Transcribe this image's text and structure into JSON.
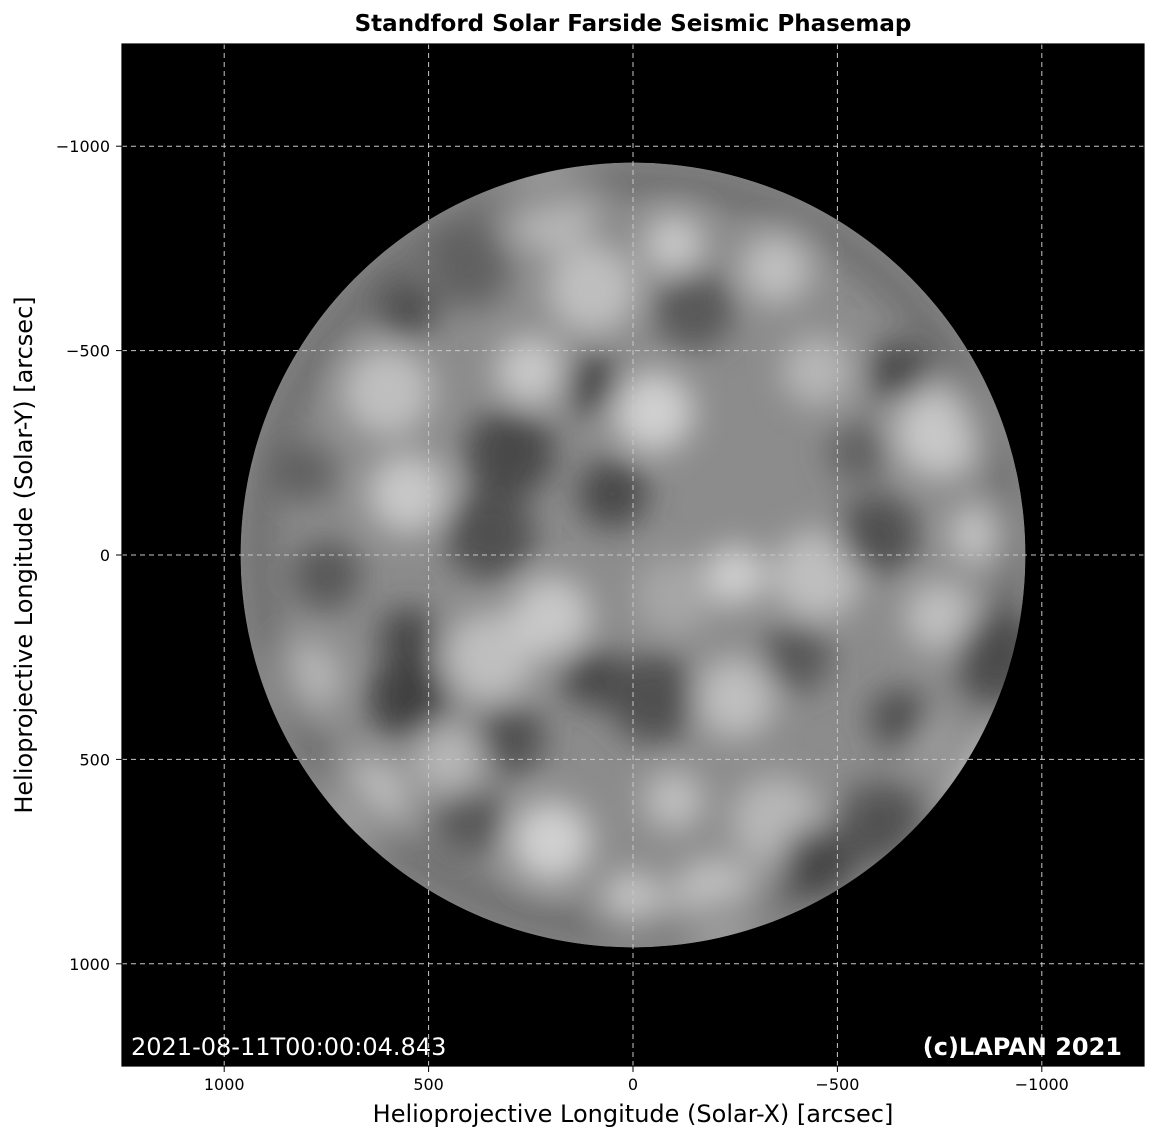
{
  "chart_data": {
    "type": "heatmap",
    "title": "Standford Solar Farside Seismic Phasemap",
    "xlabel": "Helioprojective Longitude (Solar-X) [arcsec]",
    "ylabel": "Helioprojective Longitude (Solar-Y) [arcsec]",
    "xlim": [
      1250,
      -1250
    ],
    "ylim": [
      -1250,
      1250
    ],
    "x_ticks": [
      1000,
      500,
      0,
      -500,
      -1000
    ],
    "x_tick_labels": [
      "1000",
      "500",
      "0",
      "−500",
      "−1000"
    ],
    "y_ticks": [
      -1000,
      -500,
      0,
      500,
      1000
    ],
    "y_tick_labels": [
      "−1000",
      "−500",
      "0",
      "500",
      "1000"
    ],
    "grid": true,
    "colormap": "gray",
    "background": "#000000",
    "disk": {
      "center": [
        0,
        0
      ],
      "radius": 960
    },
    "timestamp": "2021-08-11T00:00:04.843",
    "copyright": "(c)LAPAN 2021",
    "features": [
      {
        "x": -100,
        "y": -760,
        "v": 0.9
      },
      {
        "x": 200,
        "y": -850,
        "v": 0.8
      },
      {
        "x": 400,
        "y": -700,
        "v": 0.3
      },
      {
        "x": -350,
        "y": -700,
        "v": 0.85
      },
      {
        "x": 550,
        "y": -600,
        "v": 0.2
      },
      {
        "x": 600,
        "y": -400,
        "v": 0.85
      },
      {
        "x": -50,
        "y": -350,
        "v": 0.95
      },
      {
        "x": 250,
        "y": -450,
        "v": 0.9
      },
      {
        "x": 100,
        "y": -420,
        "v": 0.15
      },
      {
        "x": 300,
        "y": -250,
        "v": 0.15
      },
      {
        "x": -150,
        "y": -600,
        "v": 0.25
      },
      {
        "x": -450,
        "y": -450,
        "v": 0.8
      },
      {
        "x": -650,
        "y": -450,
        "v": 0.15
      },
      {
        "x": -750,
        "y": -300,
        "v": 0.9
      },
      {
        "x": 550,
        "y": -150,
        "v": 0.9
      },
      {
        "x": 750,
        "y": 50,
        "v": 0.25
      },
      {
        "x": 550,
        "y": 200,
        "v": 0.15
      },
      {
        "x": 350,
        "y": 250,
        "v": 0.85
      },
      {
        "x": 200,
        "y": 150,
        "v": 0.9
      },
      {
        "x": 50,
        "y": -150,
        "v": 0.15
      },
      {
        "x": -250,
        "y": 50,
        "v": 0.95
      },
      {
        "x": -450,
        "y": 50,
        "v": 0.85
      },
      {
        "x": -600,
        "y": -50,
        "v": 0.2
      },
      {
        "x": -750,
        "y": 150,
        "v": 0.85
      },
      {
        "x": -850,
        "y": -50,
        "v": 0.9
      },
      {
        "x": -900,
        "y": 250,
        "v": 0.2
      },
      {
        "x": 550,
        "y": 350,
        "v": 0.1
      },
      {
        "x": 300,
        "y": 450,
        "v": 0.2
      },
      {
        "x": 100,
        "y": 300,
        "v": 0.15
      },
      {
        "x": -50,
        "y": 350,
        "v": 0.2
      },
      {
        "x": -250,
        "y": 350,
        "v": 0.85
      },
      {
        "x": -400,
        "y": 250,
        "v": 0.25
      },
      {
        "x": -650,
        "y": 400,
        "v": 0.2
      },
      {
        "x": -800,
        "y": 500,
        "v": 0.8
      },
      {
        "x": 200,
        "y": 700,
        "v": 0.95
      },
      {
        "x": 400,
        "y": 650,
        "v": 0.25
      },
      {
        "x": -100,
        "y": 600,
        "v": 0.85
      },
      {
        "x": -350,
        "y": 650,
        "v": 0.8
      },
      {
        "x": -600,
        "y": 650,
        "v": 0.25
      },
      {
        "x": -450,
        "y": 750,
        "v": 0.15
      },
      {
        "x": 0,
        "y": 850,
        "v": 0.9
      },
      {
        "x": -200,
        "y": 850,
        "v": 0.85
      },
      {
        "x": 650,
        "y": 600,
        "v": 0.85
      },
      {
        "x": 800,
        "y": 300,
        "v": 0.8
      },
      {
        "x": 800,
        "y": -200,
        "v": 0.3
      },
      {
        "x": 350,
        "y": -50,
        "v": 0.2
      },
      {
        "x": -100,
        "y": 100,
        "v": 0.7
      },
      {
        "x": 450,
        "y": 500,
        "v": 0.8
      },
      {
        "x": -550,
        "y": -250,
        "v": 0.3
      },
      {
        "x": 100,
        "y": -650,
        "v": 0.85
      }
    ]
  }
}
